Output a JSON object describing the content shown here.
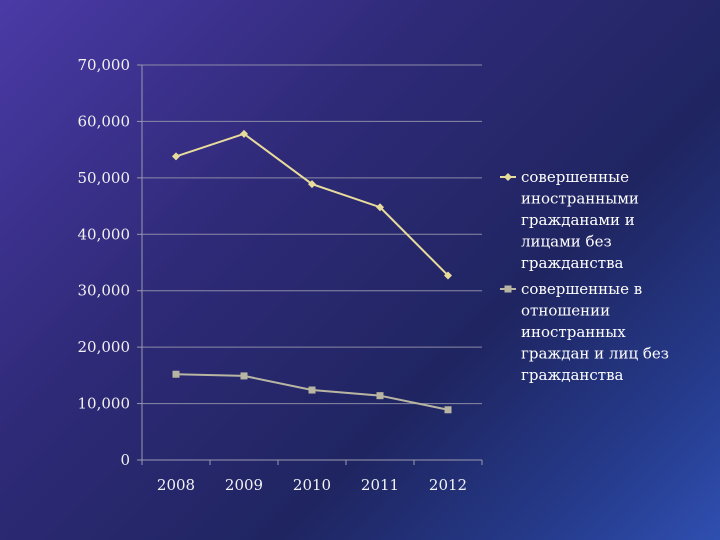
{
  "chart_data": {
    "type": "line",
    "categories": [
      "2008",
      "2009",
      "2010",
      "2011",
      "2012"
    ],
    "series": [
      {
        "name": "совершенные иностранными гражданами и лицами без гражданства",
        "legend_lines": [
          "совершенные",
          "иностранными",
          "гражданами и",
          "лицами без",
          "гражданства"
        ],
        "values": [
          53800,
          57800,
          48900,
          44800,
          32700
        ],
        "color": "#e8dc9c",
        "marker": "diamond"
      },
      {
        "name": "совершенные в отношении иностранных граждан и лиц без гражданства",
        "legend_lines": [
          "совершенные в",
          "отношении",
          "иностранных",
          "граждан и лиц без",
          "гражданства"
        ],
        "values": [
          15200,
          14900,
          12400,
          11400,
          8900
        ],
        "color": "#b8b6a2",
        "marker": "square"
      }
    ],
    "y_ticks": [
      "0",
      "10,000",
      "20,000",
      "30,000",
      "40,000",
      "50,000",
      "60,000",
      "70,000"
    ],
    "ylim": [
      0,
      70000
    ],
    "grid": true,
    "legend_position": "right"
  }
}
